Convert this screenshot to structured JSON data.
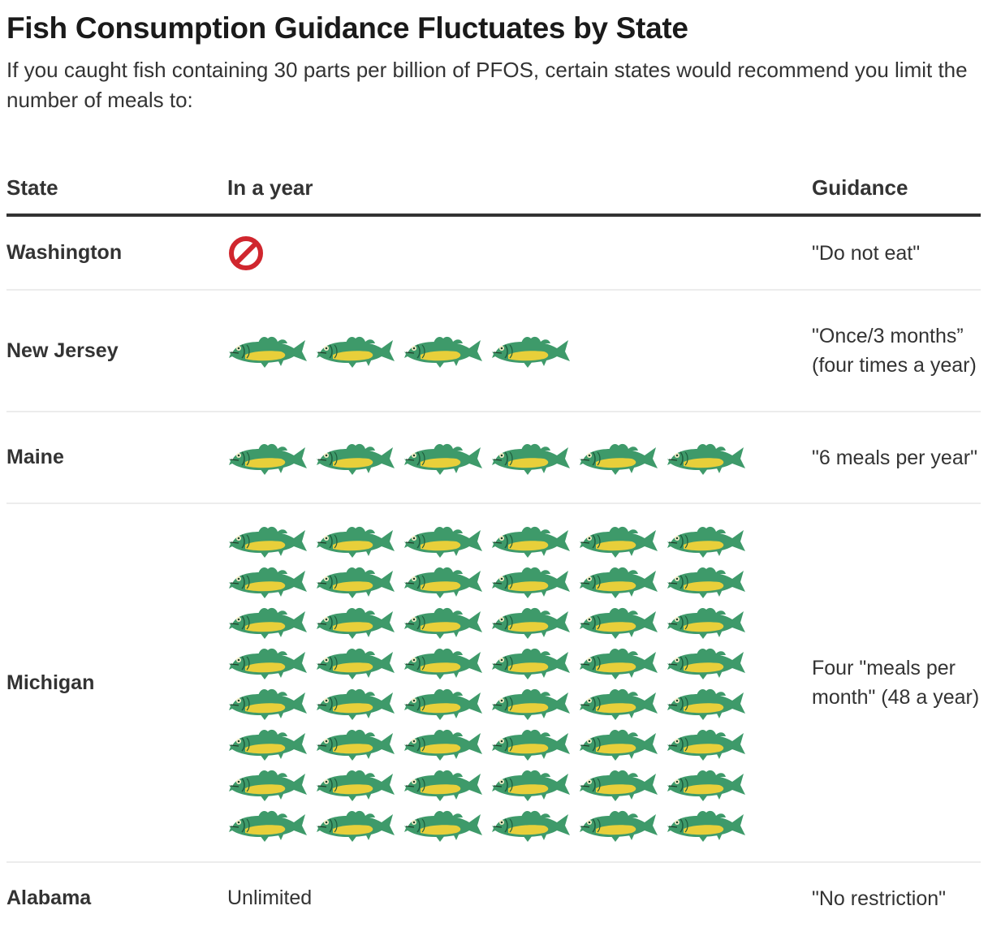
{
  "header": {
    "title": "Fish Consumption Guidance Fluctuates by State",
    "subtitle": "If you caught fish containing 30 parts per billion of PFOS, certain states would recommend you limit the number of meals to:"
  },
  "table": {
    "columns": [
      "State",
      "In a year",
      "Guidance"
    ],
    "rows": [
      {
        "state": "Washington",
        "meals": 0,
        "display": "do-not-eat-icon",
        "guidance": "\"Do not eat\""
      },
      {
        "state": "New Jersey",
        "meals": 4,
        "display": "fish-icons",
        "guidance": "\"Once/3 months” (four times a year)"
      },
      {
        "state": "Maine",
        "meals": 6,
        "display": "fish-icons",
        "guidance": "\"6 meals per year\""
      },
      {
        "state": "Michigan",
        "meals": 48,
        "display": "fish-icons",
        "guidance": "Four \"meals per month\" (48 a year)"
      },
      {
        "state": "Alabama",
        "meals": null,
        "display": "Unlimited",
        "guidance": "\"No restriction\""
      }
    ]
  },
  "colors": {
    "fish_green": "#3e9a6a",
    "fish_yellow": "#e8cf3a",
    "no_symbol_red": "#d0262e",
    "header_rule": "#333333",
    "row_rule": "#ececec"
  },
  "chart_data": {
    "type": "table",
    "title": "Fish Consumption Guidance Fluctuates by State",
    "subtitle": "If you caught fish containing 30 parts per billion of PFOS, certain states would recommend you limit the number of meals to:",
    "columns": [
      "State",
      "In a year",
      "Guidance"
    ],
    "categories": [
      "Washington",
      "New Jersey",
      "Maine",
      "Michigan",
      "Alabama"
    ],
    "series": [
      {
        "name": "Meals per year (fish icons)",
        "values": [
          0,
          4,
          6,
          48,
          null
        ]
      }
    ],
    "value_labels": [
      "Do not eat (prohibited symbol)",
      "4 fish",
      "6 fish",
      "48 fish (8 rows x 6)",
      "Unlimited"
    ],
    "guidance": [
      "\"Do not eat\"",
      "\"Once/3 months” (four times a year)",
      "\"6 meals per year\"",
      "Four \"meals per month\" (48 a year)",
      "\"No restriction\""
    ],
    "icon_unit": "1 fish = 1 meal"
  }
}
